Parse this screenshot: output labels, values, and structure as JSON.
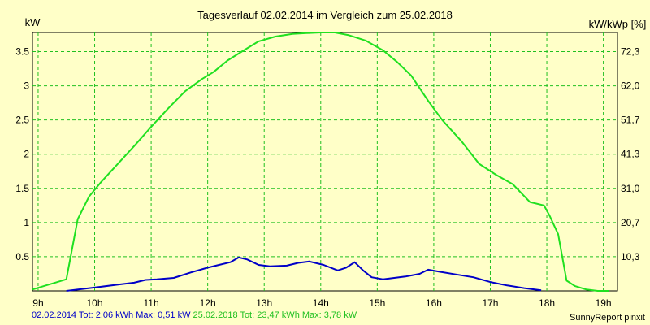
{
  "chart_data": {
    "type": "line",
    "title": "Tagesverlauf 02.02.2014 im Vergleich zum 25.02.2018",
    "ylabel_left": "kW",
    "ylabel_right": "kW/kWp [%]",
    "x_ticks": [
      "9h",
      "10h",
      "11h",
      "12h",
      "13h",
      "14h",
      "15h",
      "16h",
      "17h",
      "18h",
      "19h"
    ],
    "xlim": [
      8.9,
      19.25
    ],
    "ylim": [
      0,
      3.78
    ],
    "y_ticks_left": [
      "0.5",
      "1",
      "1.5",
      "2",
      "2.5",
      "3",
      "3.5"
    ],
    "y_ticks_right": [
      "10,3",
      "20,7",
      "31,0",
      "41,3",
      "51,7",
      "62,0",
      "72,3"
    ],
    "grid": true,
    "colors": {
      "background": "#ffffc8",
      "plot": "#ffffc8",
      "grid": "#20c020",
      "green": "#20e020",
      "blue": "#0000c8"
    },
    "series": [
      {
        "name": "25.02.2018",
        "color": "#20e020",
        "x": [
          8.9,
          9.1,
          9.3,
          9.5,
          9.7,
          9.9,
          10.1,
          10.4,
          10.7,
          11.0,
          11.3,
          11.6,
          11.9,
          12.1,
          12.35,
          12.6,
          12.9,
          13.2,
          13.5,
          13.75,
          14.0,
          14.25,
          14.5,
          14.8,
          15.1,
          15.35,
          15.6,
          15.9,
          16.15,
          16.5,
          16.8,
          17.1,
          17.4,
          17.7,
          17.95,
          18.05,
          18.2,
          18.35,
          18.5,
          18.7,
          18.9,
          19.1
        ],
        "y": [
          0.02,
          0.07,
          0.12,
          0.17,
          1.05,
          1.38,
          1.58,
          1.85,
          2.12,
          2.4,
          2.67,
          2.92,
          3.1,
          3.2,
          3.37,
          3.5,
          3.65,
          3.72,
          3.76,
          3.77,
          3.78,
          3.78,
          3.74,
          3.66,
          3.52,
          3.35,
          3.15,
          2.78,
          2.5,
          2.18,
          1.86,
          1.7,
          1.56,
          1.3,
          1.25,
          1.1,
          0.83,
          0.15,
          0.07,
          0.02,
          0.0,
          0.0
        ]
      },
      {
        "name": "02.02.2014",
        "color": "#0000c8",
        "x": [
          9.5,
          9.8,
          10.1,
          10.4,
          10.7,
          10.9,
          11.1,
          11.4,
          11.7,
          12.0,
          12.2,
          12.4,
          12.55,
          12.7,
          12.9,
          13.1,
          13.4,
          13.6,
          13.8,
          14.05,
          14.3,
          14.45,
          14.6,
          14.75,
          14.9,
          15.1,
          15.3,
          15.5,
          15.75,
          15.9,
          16.1,
          16.4,
          16.7,
          17.0,
          17.3,
          17.6,
          17.9
        ],
        "y": [
          0.0,
          0.03,
          0.06,
          0.09,
          0.12,
          0.16,
          0.17,
          0.19,
          0.27,
          0.34,
          0.38,
          0.42,
          0.49,
          0.46,
          0.38,
          0.36,
          0.37,
          0.41,
          0.43,
          0.38,
          0.3,
          0.34,
          0.42,
          0.3,
          0.2,
          0.17,
          0.19,
          0.21,
          0.25,
          0.31,
          0.28,
          0.24,
          0.2,
          0.13,
          0.08,
          0.04,
          0.01
        ]
      }
    ]
  },
  "footer": {
    "s1_label": "02.02.2014 Tot: 2,06 kWh Max: 0,51 kW",
    "s2_label": "25.02.2018 Tot: 23,47 kWh Max: 3,78 kW",
    "credit": "SunnyReport pinxit"
  }
}
